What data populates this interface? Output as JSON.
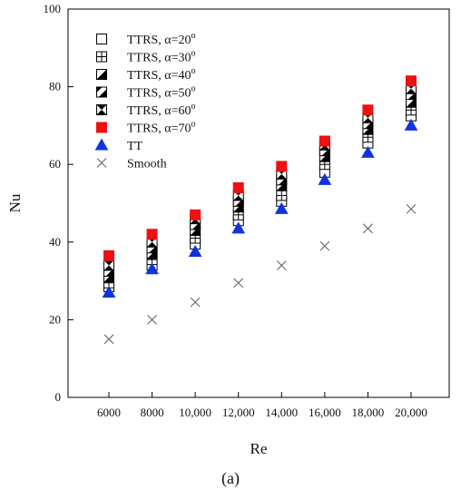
{
  "panel_label": "(a)",
  "chart_data": {
    "type": "scatter",
    "xlabel": "Re",
    "ylabel": "Nu",
    "categories": [
      "6000",
      "8000",
      "10,000",
      "12,000",
      "14,000",
      "16,000",
      "18,000",
      "20,000"
    ],
    "ylim": [
      0,
      100
    ],
    "yticks": [
      0,
      20,
      40,
      60,
      80,
      100
    ],
    "grid": false,
    "legend_position": "top-left",
    "series": [
      {
        "name": "TTRS, α=20°",
        "label_main": "TTRS, α=20",
        "label_sup": "o",
        "marker": "square-open",
        "color": "#000000",
        "values": [
          28.5,
          34.0,
          39.5,
          45.5,
          50.5,
          58.0,
          65.5,
          72.5
        ]
      },
      {
        "name": "TTRS, α=30°",
        "label_main": "TTRS, α=30",
        "label_sup": "o",
        "marker": "square-plus",
        "color": "#000000",
        "values": [
          29.5,
          35.5,
          41.0,
          47.0,
          52.0,
          60.0,
          67.0,
          74.0
        ]
      },
      {
        "name": "TTRS, α=40°",
        "label_main": "TTRS, α=40",
        "label_sup": "o",
        "marker": "square-half-diag",
        "color": "#000000",
        "values": [
          31.0,
          37.0,
          43.0,
          49.0,
          54.5,
          62.0,
          69.0,
          76.0
        ]
      },
      {
        "name": "TTRS, α=50°",
        "label_main": "TTRS, α=50",
        "label_sup": "o",
        "marker": "square-diag-stripe",
        "color": "#000000",
        "values": [
          32.5,
          38.5,
          44.5,
          50.5,
          56.0,
          63.5,
          70.5,
          78.0
        ]
      },
      {
        "name": "TTRS, α=60°",
        "label_main": "TTRS, α=60",
        "label_sup": "o",
        "marker": "square-hourglass",
        "color": "#000000",
        "values": [
          34.0,
          40.0,
          46.0,
          52.0,
          57.5,
          65.0,
          72.0,
          79.5
        ]
      },
      {
        "name": "TTRS, α=70°",
        "label_main": "TTRS, α=70",
        "label_sup": "o",
        "marker": "square-filled",
        "color": "#ee1111",
        "values": [
          36.5,
          42.0,
          47.0,
          54.0,
          59.5,
          66.0,
          74.0,
          81.5
        ]
      },
      {
        "name": "TT",
        "label_main": "TT",
        "label_sup": "",
        "marker": "triangle-filled",
        "color": "#1133dd",
        "values": [
          27.0,
          33.0,
          37.5,
          43.5,
          48.5,
          56.0,
          63.0,
          70.0
        ]
      },
      {
        "name": "Smooth",
        "label_main": "Smooth",
        "label_sup": "",
        "marker": "x",
        "color": "#666666",
        "values": [
          15.0,
          20.0,
          24.5,
          29.5,
          34.0,
          39.0,
          43.5,
          48.5
        ]
      }
    ]
  }
}
